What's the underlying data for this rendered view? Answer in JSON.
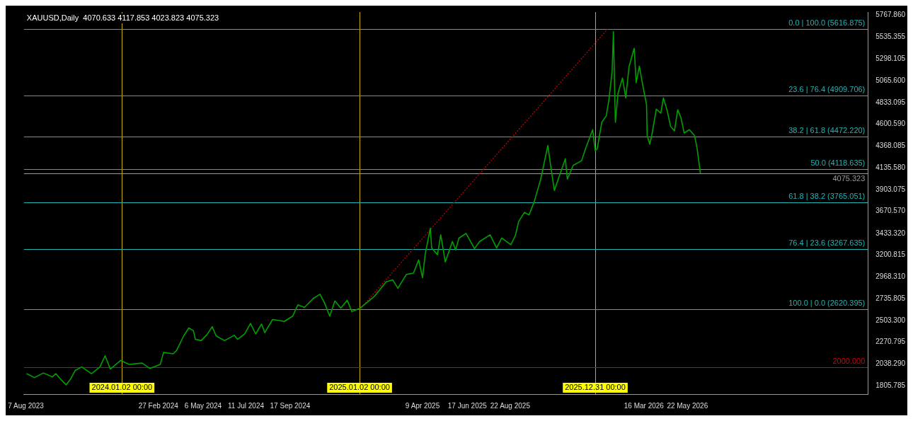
{
  "chart_data": {
    "type": "line",
    "title": "XAUUSD,Daily  4070.633 4117.853 4023.823 4075.323",
    "legend": false,
    "grid": false,
    "marker": "none",
    "x": [
      "2023-08-08",
      "2023-08-20",
      "2023-09-03",
      "2023-09-17",
      "2023-09-22",
      "2023-10-01",
      "2023-10-08",
      "2023-10-15",
      "2023-10-22",
      "2023-11-01",
      "2023-11-16",
      "2023-11-29",
      "2023-12-07",
      "2023-12-15",
      "2023-12-31",
      "2024-01-13",
      "2024-02-02",
      "2024-02-14",
      "2024-03-01",
      "2024-03-06",
      "2024-03-21",
      "2024-03-26",
      "2024-04-06",
      "2024-04-14",
      "2024-04-21",
      "2024-04-24",
      "2024-05-03",
      "2024-05-12",
      "2024-05-20",
      "2024-05-26",
      "2024-06-08",
      "2024-06-23",
      "2024-06-28",
      "2024-07-09",
      "2024-07-18",
      "2024-07-26",
      "2024-08-04",
      "2024-08-09",
      "2024-08-21",
      "2024-09-08",
      "2024-09-21",
      "2024-09-29",
      "2024-10-09",
      "2024-10-23",
      "2024-11-02",
      "2024-11-09",
      "2024-11-17",
      "2024-11-25",
      "2024-12-04",
      "2024-12-14",
      "2024-12-21",
      "2025-01-03",
      "2025-01-25",
      "2025-02-12",
      "2025-02-22",
      "2025-03-02",
      "2025-03-15",
      "2025-03-26",
      "2025-04-03",
      "2025-04-09",
      "2025-04-13",
      "2025-04-21",
      "2025-04-23",
      "2025-05-02",
      "2025-05-07",
      "2025-05-14",
      "2025-05-25",
      "2025-05-30",
      "2025-06-04",
      "2025-06-15",
      "2025-06-28",
      "2025-07-06",
      "2025-07-22",
      "2025-08-01",
      "2025-08-09",
      "2025-08-23",
      "2025-08-30",
      "2025-09-04",
      "2025-09-13",
      "2025-09-20",
      "2025-09-28",
      "2025-10-08",
      "2025-10-19",
      "2025-10-24",
      "2025-10-29",
      "2025-11-04",
      "2025-11-15",
      "2025-11-18",
      "2025-11-27",
      "2025-12-10",
      "2025-12-16",
      "2025-12-27",
      "2025-12-31",
      "2026-01-03",
      "2026-01-10",
      "2026-01-17",
      "2026-01-21",
      "2026-01-26",
      "2026-01-28",
      "2026-01-31",
      "2026-02-04",
      "2026-02-11",
      "2026-02-16",
      "2026-02-21",
      "2026-03-01",
      "2026-03-04",
      "2026-03-09",
      "2026-03-14",
      "2026-03-20",
      "2026-03-21",
      "2026-03-25",
      "2026-03-28",
      "2026-04-04",
      "2026-04-11",
      "2026-04-15",
      "2026-04-21",
      "2026-04-26",
      "2026-05-02",
      "2026-05-07",
      "2026-05-12",
      "2026-05-17",
      "2026-05-25",
      "2026-06-02",
      "2026-06-06",
      "2026-06-11"
    ],
    "series": [
      {
        "color": "#00a000",
        "values": [
          1935,
          1893,
          1942,
          1900,
          1935,
          1864,
          1815,
          1878,
          1970,
          2006,
          1935,
          2006,
          2126,
          1984,
          2076,
          2034,
          2048,
          1991,
          2034,
          2161,
          2147,
          2182,
          2338,
          2423,
          2394,
          2302,
          2288,
          2352,
          2437,
          2338,
          2288,
          2345,
          2302,
          2359,
          2472,
          2359,
          2465,
          2373,
          2514,
          2493,
          2550,
          2670,
          2642,
          2741,
          2783,
          2691,
          2550,
          2712,
          2635,
          2719,
          2599,
          2635,
          2762,
          2917,
          2938,
          2847,
          2995,
          3009,
          3150,
          2960,
          3207,
          3490,
          3278,
          3207,
          3419,
          3129,
          3348,
          3256,
          3384,
          3433,
          3271,
          3348,
          3419,
          3278,
          3384,
          3313,
          3412,
          3560,
          3659,
          3631,
          3772,
          4013,
          4373,
          4126,
          3893,
          4013,
          4232,
          4013,
          4161,
          4211,
          4338,
          4543,
          4316,
          4338,
          4620,
          4691,
          4861,
          5165,
          5589,
          4620,
          4931,
          5094,
          4882,
          5214,
          5412,
          5044,
          5221,
          5023,
          4811,
          4479,
          4387,
          4479,
          4762,
          4719,
          4882,
          4741,
          4578,
          4529,
          4755,
          4670,
          4507,
          4543,
          4479,
          4338,
          4075
        ]
      },
      {
        "type": "line",
        "x": [
          "2025-01-02",
          "2026-01-19"
        ],
        "values": [
          2620,
          5617
        ],
        "color": "#cc0000",
        "line_style": "dotted"
      }
    ],
    "xlim": [
      "2023-08-04",
      "2027-02-24"
    ],
    "xticks": [
      {
        "value": "2023-08-07",
        "label": "7 Aug 2023"
      },
      {
        "value": "2024-02-27",
        "label": "27 Feb 2024"
      },
      {
        "value": "2024-05-06",
        "label": "6 May 2024"
      },
      {
        "value": "2024-07-11",
        "label": "11 Jul 2024"
      },
      {
        "value": "2024-09-17",
        "label": "17 Sep 2024"
      },
      {
        "value": "2025-04-09",
        "label": "9 Apr 2025"
      },
      {
        "value": "2025-06-17",
        "label": "17 Jun 2025"
      },
      {
        "value": "2025-08-22",
        "label": "22 Aug 2025"
      },
      {
        "value": "2026-03-16",
        "label": "16 Mar 2026"
      },
      {
        "value": "2026-05-22",
        "label": "22 May 2026"
      }
    ],
    "ylim": [
      1716,
      5800
    ],
    "yticks": [
      1805.785,
      {
        "value": 2038.29,
        "label": "2038.290"
      },
      2270.795,
      {
        "value": 2503.3,
        "label": "2503.300"
      },
      2735.805,
      {
        "value": 2968.31,
        "label": "2968.310"
      },
      3200.815,
      {
        "value": 3433.32,
        "label": "3433.320"
      },
      {
        "value": 3670.57,
        "label": "3670.570"
      },
      3903.075,
      {
        "value": 4135.58,
        "label": "4135.580"
      },
      4368.085,
      {
        "value": 4600.59,
        "label": "4600.590"
      },
      4833.095,
      {
        "value": 5065.6,
        "label": "5065.600"
      },
      5298.105,
      5535.355,
      {
        "value": 5767.86,
        "label": "5767.860"
      }
    ],
    "ref_lines": [
      {
        "axis": "x",
        "value": "2024-01-02",
        "label": "2024.01.02 00:00",
        "color": "#c8b400"
      },
      {
        "axis": "x",
        "value": "2025-01-02",
        "label": "2025.01.02 00:00",
        "color": "#c8b400"
      },
      {
        "axis": "x",
        "value": "2025-12-31",
        "label": "2025.12.31 00:00",
        "color": "#c8b400"
      },
      {
        "axis": "y",
        "value": 5616.875,
        "label": "0.0 | 100.0 (5616.875)",
        "color": "#1fb5b5"
      },
      {
        "axis": "y",
        "value": 4909.706,
        "label": "23.6 | 76.4 (4909.706)",
        "color": "#1fb5b5"
      },
      {
        "axis": "y",
        "value": 4472.22,
        "label": "38.2 | 61.8 (4472.220)",
        "color": "#1fb5b5"
      },
      {
        "axis": "y",
        "value": 4118.635,
        "label": "50.0 (4118.635)",
        "color": "#1fb5b5"
      },
      {
        "axis": "y",
        "value": 3765.051,
        "label": "61.8 | 38.2 (3765.051)",
        "color": "#1fb5b5"
      },
      {
        "axis": "y",
        "value": 3267.635,
        "label": "76.4 | 23.6 (3267.635)",
        "color": "#1fb5b5"
      },
      {
        "axis": "y",
        "value": 2620.395,
        "label": "100.0 | 0.0 (2620.395)",
        "color": "#1fb5b5"
      },
      {
        "axis": "y",
        "value": 2000,
        "label": "2000.000",
        "color": "#dd0000"
      },
      {
        "axis": "y",
        "value": 4075.323,
        "label": "4075.323",
        "color": "#9a9a9a"
      }
    ]
  }
}
